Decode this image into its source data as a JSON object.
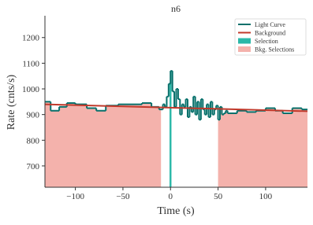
{
  "chart_data": {
    "type": "step",
    "title": "n6",
    "x_label": "Time (s)",
    "y_label": "Rate (cnts/s)",
    "xlim": [
      -132,
      144
    ],
    "ylim": [
      617,
      1285
    ],
    "xticks": [
      {
        "value": -100,
        "label": "−100"
      },
      {
        "value": -50,
        "label": "−50"
      },
      0,
      50,
      100
    ],
    "yticks": [
      700,
      800,
      900,
      1000,
      1100,
      1200
    ],
    "light_curve": {
      "name": "Light Curve",
      "color": "#07706b",
      "bins": [
        -132,
        -126,
        -117,
        -109,
        -100,
        -88,
        -78,
        -68,
        -55,
        -30,
        -20,
        -12,
        -8,
        -6,
        -4,
        -2,
        0,
        2,
        4,
        6,
        8,
        10,
        12,
        14,
        16,
        18,
        20,
        22,
        24,
        26,
        28,
        30,
        32,
        34,
        36,
        38,
        40,
        42,
        44,
        46,
        48,
        50,
        52,
        54,
        56,
        58,
        60,
        70,
        80,
        90,
        100,
        110,
        118,
        128,
        138,
        144
      ],
      "values": [
        950,
        915,
        930,
        945,
        940,
        925,
        915,
        935,
        940,
        945,
        930,
        920,
        940,
        930,
        970,
        1020,
        1070,
        990,
        930,
        1000,
        960,
        900,
        940,
        930,
        960,
        890,
        930,
        910,
        970,
        900,
        950,
        880,
        960,
        920,
        900,
        940,
        890,
        950,
        900,
        920,
        935,
        880,
        930,
        900,
        905,
        915,
        905,
        915,
        910,
        915,
        925,
        915,
        905,
        925,
        920
      ]
    },
    "background": {
      "name": "Background",
      "color": "#c0392b",
      "x": [
        -132,
        144
      ],
      "values": [
        940,
        913
      ]
    },
    "selections": [
      {
        "name": "Selection",
        "color": "#2ab8a8",
        "intervals": [
          [
            -1,
            1
          ]
        ]
      },
      {
        "name": "Bkg. Selections",
        "color": "#f4b2ac",
        "intervals": [
          [
            -132,
            -10
          ],
          [
            50,
            144
          ]
        ]
      }
    ]
  }
}
